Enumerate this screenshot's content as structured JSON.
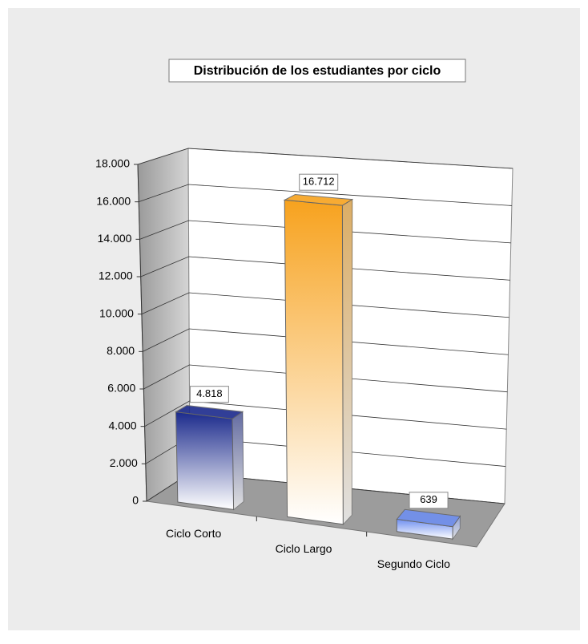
{
  "chart_data": {
    "type": "bar3d",
    "title": "Distribución de los estudiantes por ciclo",
    "categories": [
      "Ciclo Corto",
      "Ciclo Largo",
      "Segundo Ciclo"
    ],
    "values": [
      4818,
      16712,
      639
    ],
    "value_labels": [
      "4.818",
      "16.712",
      "639"
    ],
    "colors": [
      "#1b2a8c",
      "#f7a21e",
      "#6f8ff0"
    ],
    "ylim": [
      0,
      18000
    ],
    "yticks": [
      0,
      {
        "value": 2000,
        "label": "2.000"
      },
      {
        "value": 4000,
        "label": "4.000"
      },
      {
        "value": 6000,
        "label": "6.000"
      },
      {
        "value": 8000,
        "label": "8.000"
      },
      {
        "value": 10000,
        "label": "10.000"
      },
      {
        "value": 12000,
        "label": "12.000"
      },
      {
        "value": 14000,
        "label": "14.000"
      },
      {
        "value": 16000,
        "label": "16.000"
      },
      {
        "value": 18000,
        "label": "18.000"
      }
    ],
    "grid": true
  }
}
